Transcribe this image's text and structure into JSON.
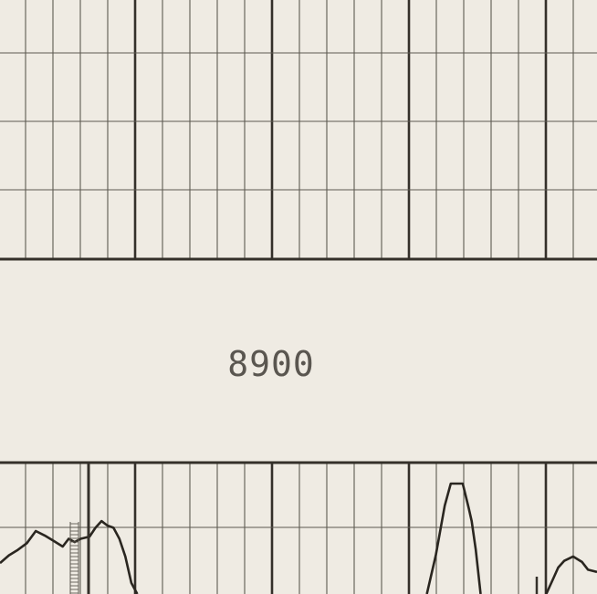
{
  "chart_data": {
    "type": "line",
    "strip_label": "8900",
    "grid": true,
    "colors": {
      "paper": "#efebe3",
      "grid_minor": "#5e5a52",
      "grid_major": "#34302a",
      "trace": "#2a2620",
      "label": "#5a5650"
    },
    "series": [
      {
        "values": [
          [
            0,
            0.28
          ],
          [
            0.015,
            0.35
          ],
          [
            0.03,
            0.4
          ],
          [
            0.045,
            0.46
          ],
          [
            0.06,
            0.57
          ],
          [
            0.075,
            0.53
          ],
          [
            0.09,
            0.48
          ],
          [
            0.105,
            0.43
          ],
          [
            0.115,
            0.5
          ],
          [
            0.125,
            0.47
          ],
          [
            0.135,
            0.5
          ],
          [
            0.15,
            0.52
          ],
          [
            0.16,
            0.6
          ],
          [
            0.17,
            0.66
          ],
          [
            0.18,
            0.62
          ],
          [
            0.19,
            0.6
          ],
          [
            0.2,
            0.5
          ],
          [
            0.21,
            0.34
          ],
          [
            0.22,
            0.1
          ],
          [
            0.23,
            0.0
          ]
        ]
      },
      {
        "values": [
          [
            0.715,
            0.0
          ],
          [
            0.73,
            0.35
          ],
          [
            0.745,
            0.8
          ],
          [
            0.755,
            1.0
          ],
          [
            0.775,
            1.0
          ],
          [
            0.785,
            0.78
          ],
          [
            0.79,
            0.66
          ],
          [
            0.797,
            0.4
          ],
          [
            0.805,
            0.0
          ]
        ]
      },
      {
        "values": [
          [
            0.915,
            0.0
          ],
          [
            0.925,
            0.12
          ],
          [
            0.935,
            0.24
          ],
          [
            0.945,
            0.3
          ],
          [
            0.96,
            0.34
          ],
          [
            0.975,
            0.29
          ],
          [
            0.985,
            0.22
          ],
          [
            1.0,
            0.2
          ]
        ]
      }
    ]
  }
}
